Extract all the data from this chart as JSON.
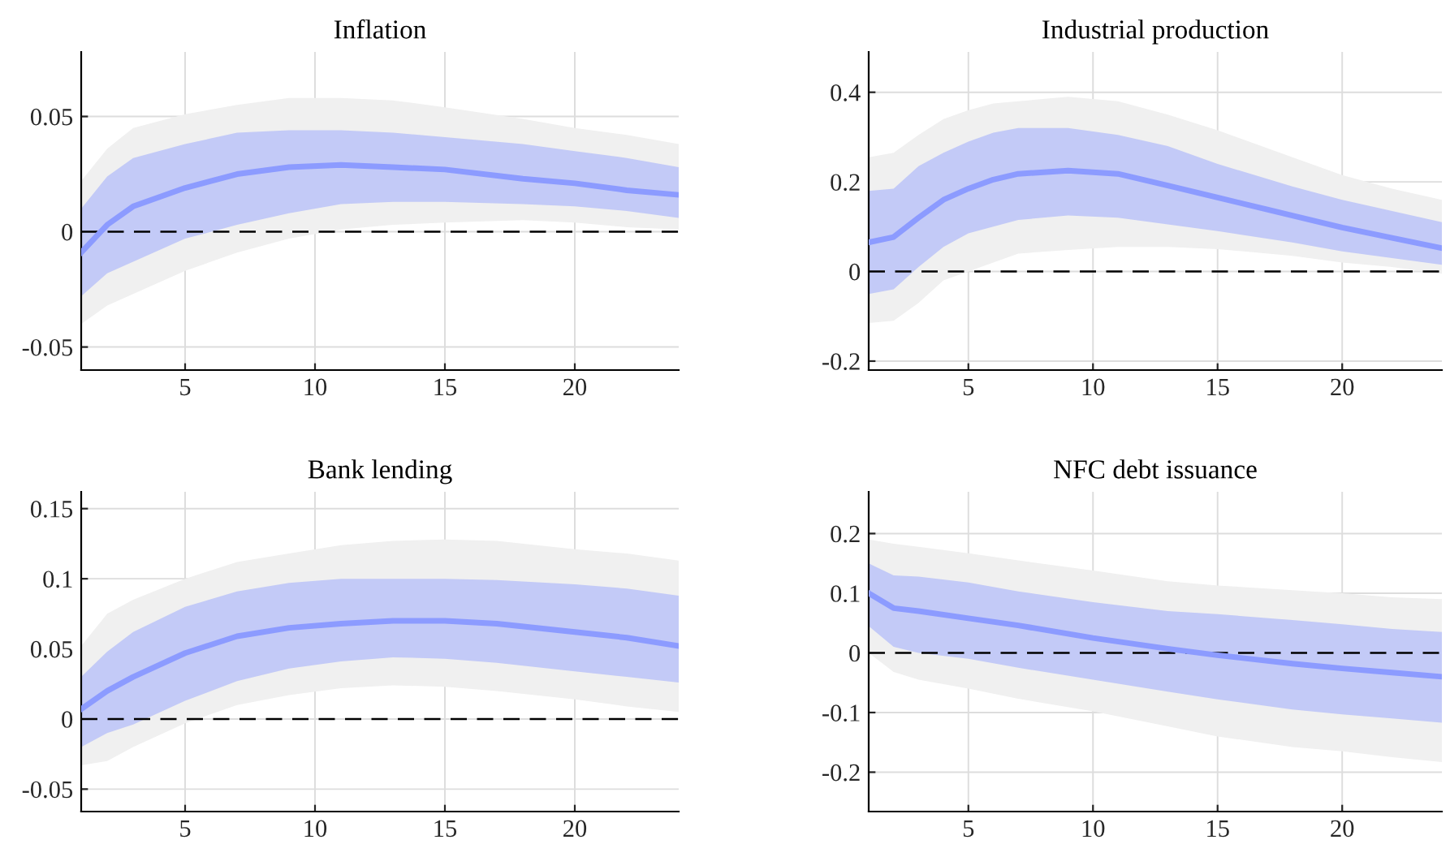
{
  "chart_data": [
    {
      "type": "line",
      "title": "Inflation",
      "x": [
        1,
        2,
        3,
        5,
        7,
        9,
        11,
        13,
        15,
        18,
        20,
        22,
        24
      ],
      "xlim": [
        1,
        24
      ],
      "xticks": [
        5,
        10,
        15,
        20
      ],
      "ylim": [
        -0.06,
        0.078
      ],
      "yticks": [
        {
          "value": -0.05,
          "label": "-0.05"
        },
        {
          "value": 0,
          "label": "0"
        },
        {
          "value": 0.05,
          "label": "0.05"
        }
      ],
      "grid": true,
      "ref_lines": [
        {
          "axis": "y",
          "value": 0,
          "color": "#000000",
          "line_style": "dashed"
        }
      ],
      "series": [
        {
          "color": "#f0f0f0",
          "values": [
            null,
            null,
            null,
            null,
            null,
            null,
            null,
            null,
            null,
            null,
            null,
            null,
            null
          ],
          "lower": [
            -0.04,
            -0.032,
            -0.027,
            -0.017,
            -0.009,
            -0.003,
            0.001,
            0.003,
            0.004,
            0.005,
            0.004,
            0.002,
            0.001
          ],
          "upper": [
            0.022,
            0.036,
            0.045,
            0.051,
            0.055,
            0.058,
            0.058,
            0.057,
            0.054,
            0.049,
            0.045,
            0.042,
            0.038
          ]
        },
        {
          "color": "#8c9bff",
          "values": [
            -0.009,
            0.003,
            0.011,
            0.019,
            0.025,
            0.028,
            0.029,
            0.028,
            0.027,
            0.023,
            0.021,
            0.018,
            0.016
          ],
          "lower": [
            -0.028,
            -0.018,
            -0.013,
            -0.003,
            0.003,
            0.008,
            0.012,
            0.013,
            0.013,
            0.012,
            0.011,
            0.009,
            0.006
          ],
          "upper": [
            0.01,
            0.024,
            0.032,
            0.038,
            0.043,
            0.044,
            0.044,
            0.043,
            0.041,
            0.038,
            0.035,
            0.032,
            0.028
          ]
        }
      ]
    },
    {
      "type": "line",
      "title": "Industrial production",
      "x": [
        1,
        2,
        3,
        4,
        5,
        6,
        7,
        9,
        11,
        13,
        15,
        18,
        20,
        22,
        24
      ],
      "xlim": [
        1,
        24
      ],
      "xticks": [
        5,
        10,
        15,
        20
      ],
      "ylim": [
        -0.22,
        0.49
      ],
      "yticks": [
        {
          "value": -0.2,
          "label": "-0.2"
        },
        0,
        0.2,
        0.4
      ],
      "grid": true,
      "ref_lines": [
        {
          "axis": "y",
          "value": 0,
          "color": "#000000",
          "line_style": "dashed"
        }
      ],
      "series": [
        {
          "color": "#f0f0f0",
          "values": [
            null,
            null,
            null,
            null,
            null,
            null,
            null,
            null,
            null,
            null,
            null,
            null,
            null,
            null,
            null
          ],
          "lower": [
            -0.115,
            -0.11,
            -0.07,
            -0.02,
            0.0,
            0.02,
            0.04,
            0.048,
            0.055,
            0.055,
            0.05,
            0.035,
            0.02,
            0.01,
            -0.005
          ],
          "upper": [
            0.255,
            0.265,
            0.305,
            0.34,
            0.36,
            0.375,
            0.38,
            0.39,
            0.38,
            0.35,
            0.315,
            0.255,
            0.215,
            0.185,
            0.16
          ]
        },
        {
          "color": "#8c9bff",
          "values": [
            0.065,
            0.077,
            0.12,
            0.16,
            0.185,
            0.205,
            0.218,
            0.225,
            0.218,
            0.192,
            0.165,
            0.125,
            0.098,
            0.075,
            0.052
          ],
          "lower": [
            -0.05,
            -0.04,
            0.01,
            0.055,
            0.085,
            0.1,
            0.115,
            0.125,
            0.12,
            0.105,
            0.09,
            0.065,
            0.045,
            0.03,
            0.015
          ],
          "upper": [
            0.18,
            0.185,
            0.235,
            0.265,
            0.29,
            0.31,
            0.32,
            0.32,
            0.305,
            0.28,
            0.24,
            0.19,
            0.16,
            0.135,
            0.11
          ]
        }
      ]
    },
    {
      "type": "line",
      "title": "Bank lending",
      "x": [
        1,
        2,
        3,
        5,
        7,
        9,
        11,
        13,
        15,
        17,
        20,
        22,
        24
      ],
      "xlim": [
        1,
        24
      ],
      "xticks": [
        5,
        10,
        15,
        20
      ],
      "ylim": [
        -0.066,
        0.162
      ],
      "yticks": [
        {
          "value": -0.05,
          "label": "-0.05"
        },
        0,
        0.05,
        0.1,
        0.15
      ],
      "grid": true,
      "ref_lines": [
        {
          "axis": "y",
          "value": 0,
          "color": "#000000",
          "line_style": "dashed"
        }
      ],
      "series": [
        {
          "color": "#f0f0f0",
          "values": [
            null,
            null,
            null,
            null,
            null,
            null,
            null,
            null,
            null,
            null,
            null,
            null,
            null
          ],
          "lower": [
            -0.033,
            -0.03,
            -0.02,
            -0.003,
            0.01,
            0.017,
            0.022,
            0.024,
            0.023,
            0.02,
            0.014,
            0.009,
            0.005
          ],
          "upper": [
            0.052,
            0.075,
            0.085,
            0.1,
            0.112,
            0.118,
            0.124,
            0.127,
            0.128,
            0.127,
            0.121,
            0.118,
            0.113
          ]
        },
        {
          "color": "#8c9bff",
          "values": [
            0.007,
            0.02,
            0.03,
            0.047,
            0.059,
            0.065,
            0.068,
            0.07,
            0.07,
            0.068,
            0.062,
            0.058,
            0.052
          ],
          "lower": [
            -0.02,
            -0.01,
            -0.004,
            0.013,
            0.027,
            0.036,
            0.041,
            0.044,
            0.043,
            0.04,
            0.034,
            0.03,
            0.026
          ],
          "upper": [
            0.03,
            0.048,
            0.062,
            0.08,
            0.091,
            0.097,
            0.1,
            0.1,
            0.1,
            0.099,
            0.096,
            0.093,
            0.088
          ]
        }
      ]
    },
    {
      "type": "line",
      "title": "NFC debt issuance",
      "x": [
        1,
        2,
        3,
        5,
        7,
        10,
        13,
        15,
        18,
        20,
        22,
        24
      ],
      "xlim": [
        1,
        24
      ],
      "xticks": [
        5,
        10,
        15,
        20
      ],
      "ylim": [
        -0.266,
        0.27
      ],
      "yticks": [
        {
          "value": -0.2,
          "label": "-0.2"
        },
        {
          "value": -0.1,
          "label": "-0.1"
        },
        0,
        0.1,
        0.2
      ],
      "grid": true,
      "ref_lines": [
        {
          "axis": "y",
          "value": 0,
          "color": "#000000",
          "line_style": "dashed"
        }
      ],
      "series": [
        {
          "color": "#f0f0f0",
          "values": [
            null,
            null,
            null,
            null,
            null,
            null,
            null,
            null,
            null,
            null,
            null,
            null
          ],
          "lower": [
            0.0,
            -0.032,
            -0.045,
            -0.06,
            -0.077,
            -0.098,
            -0.123,
            -0.14,
            -0.158,
            -0.165,
            -0.175,
            -0.183
          ],
          "upper": [
            0.19,
            0.183,
            0.178,
            0.167,
            0.155,
            0.138,
            0.12,
            0.113,
            0.105,
            0.1,
            0.093,
            0.09
          ]
        },
        {
          "color": "#8c9bff",
          "values": [
            0.1,
            0.075,
            0.07,
            0.058,
            0.046,
            0.025,
            0.007,
            -0.004,
            -0.018,
            -0.026,
            -0.033,
            -0.04
          ],
          "lower": [
            0.045,
            0.01,
            0.0,
            -0.01,
            -0.025,
            -0.045,
            -0.065,
            -0.078,
            -0.095,
            -0.103,
            -0.11,
            -0.117
          ],
          "upper": [
            0.15,
            0.13,
            0.128,
            0.118,
            0.103,
            0.085,
            0.07,
            0.065,
            0.055,
            0.048,
            0.04,
            0.035
          ]
        }
      ]
    }
  ]
}
